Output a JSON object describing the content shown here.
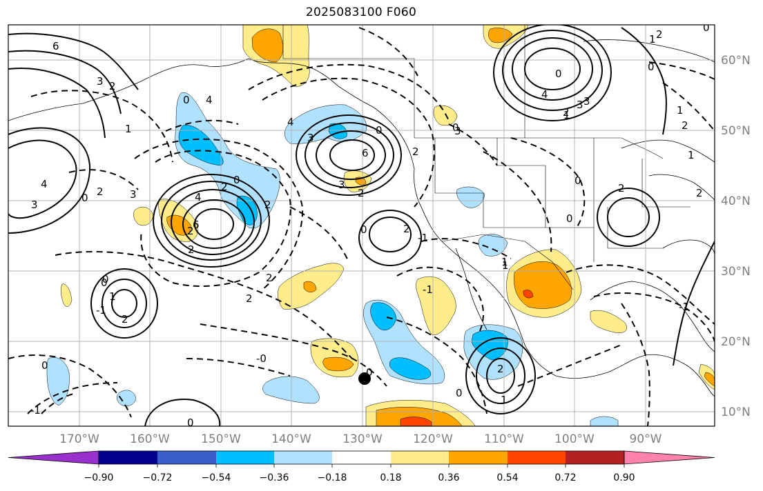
{
  "title": "2025083100 F060",
  "longitude_labels": [
    "170°W",
    "160°W",
    "150°W",
    "140°W",
    "130°W",
    "120°W",
    "110°W",
    "100°W",
    "90°W"
  ],
  "latitude_labels": [
    "60°N",
    "50°N",
    "40°N",
    "30°N",
    "20°N",
    "10°N"
  ],
  "colorbar": {
    "tick_labels": [
      "−0.90",
      "−0.72",
      "−0.54",
      "−0.36",
      "−0.18",
      "0.18",
      "0.36",
      "0.54",
      "0.72",
      "0.90"
    ],
    "colors": [
      "#9932CC",
      "#00008B",
      "#3A5FCD",
      "#00BFFF",
      "#B0E2FF",
      "#FFFFFF",
      "#FFEC8B",
      "#FFA500",
      "#FF4500",
      "#B22222",
      "#FF82AB"
    ]
  },
  "fill_colors": {
    "light_blue": "#B0E2FF",
    "blue": "#00BFFF",
    "yellow": "#FFEC8B",
    "orange": "#FFA500",
    "red_orange": "#FF4500"
  },
  "contour_labels": [
    "6",
    "3",
    "2",
    "1",
    "4",
    "3",
    "0",
    "2",
    "3",
    "4",
    "2",
    "0",
    "6",
    "2",
    "2",
    "2",
    "0",
    "4",
    "4",
    "3",
    "2",
    "2",
    "0",
    "3",
    "0",
    "6",
    "2",
    "2",
    "1",
    "3",
    "0",
    "1",
    "4",
    "0",
    "0",
    "2",
    "2",
    "2",
    "0",
    "1",
    "0",
    "0",
    "-1",
    "-0",
    "-1",
    "2",
    "0",
    "0",
    "1",
    "2",
    "1",
    "2",
    "-1",
    "0",
    "3",
    "0",
    "2",
    "1",
    "1",
    "2",
    "3",
    "-1",
    "1",
    "-1",
    "0",
    "0"
  ],
  "marker": "storm-center-dot"
}
